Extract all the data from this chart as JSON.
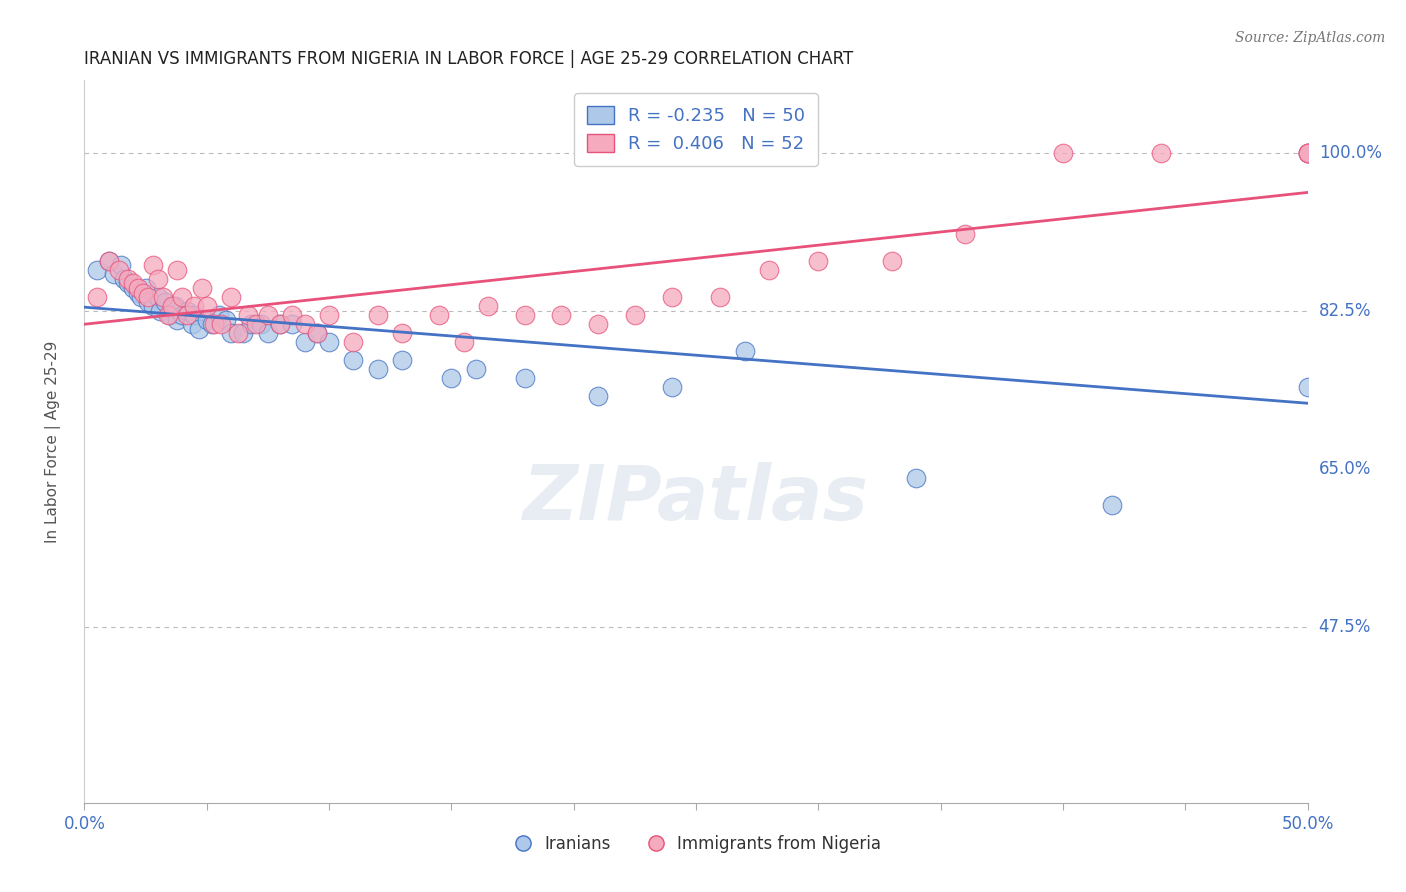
{
  "title": "IRANIAN VS IMMIGRANTS FROM NIGERIA IN LABOR FORCE | AGE 25-29 CORRELATION CHART",
  "source": "Source: ZipAtlas.com",
  "ylabel": "In Labor Force | Age 25-29",
  "xlim": [
    0.0,
    0.5
  ],
  "ylim": [
    0.28,
    1.08
  ],
  "yticks": [
    0.475,
    0.65,
    0.825,
    1.0
  ],
  "ytick_labels": [
    "47.5%",
    "65.0%",
    "82.5%",
    "100.0%"
  ],
  "hlines": [
    0.475,
    0.825,
    1.0
  ],
  "blue_R": "-0.235",
  "blue_N": "50",
  "pink_R": "0.406",
  "pink_N": "52",
  "blue_color": "#adc8e8",
  "pink_color": "#f5aabe",
  "blue_line_color": "#4472c4",
  "pink_line_color": "#e8527a",
  "legend_label_blue": "Iranians",
  "legend_label_pink": "Immigrants from Nigeria",
  "watermark": "ZIPatlas",
  "blue_points_x": [
    0.005,
    0.01,
    0.012,
    0.015,
    0.016,
    0.018,
    0.02,
    0.022,
    0.023,
    0.025,
    0.026,
    0.028,
    0.03,
    0.031,
    0.033,
    0.035,
    0.037,
    0.038,
    0.04,
    0.042,
    0.044,
    0.045,
    0.047,
    0.05,
    0.052,
    0.055,
    0.058,
    0.06,
    0.065,
    0.068,
    0.072,
    0.075,
    0.08,
    0.085,
    0.09,
    0.095,
    0.1,
    0.11,
    0.12,
    0.13,
    0.15,
    0.16,
    0.18,
    0.21,
    0.24,
    0.27,
    0.34,
    0.42,
    0.5,
    0.5
  ],
  "blue_points_y": [
    0.87,
    0.88,
    0.865,
    0.875,
    0.86,
    0.855,
    0.85,
    0.845,
    0.84,
    0.85,
    0.835,
    0.83,
    0.84,
    0.825,
    0.835,
    0.82,
    0.83,
    0.815,
    0.82,
    0.825,
    0.81,
    0.82,
    0.805,
    0.815,
    0.81,
    0.82,
    0.815,
    0.8,
    0.8,
    0.81,
    0.81,
    0.8,
    0.81,
    0.81,
    0.79,
    0.8,
    0.79,
    0.77,
    0.76,
    0.77,
    0.75,
    0.76,
    0.75,
    0.73,
    0.74,
    0.78,
    0.64,
    0.61,
    1.0,
    0.74
  ],
  "pink_points_x": [
    0.005,
    0.01,
    0.014,
    0.018,
    0.02,
    0.022,
    0.024,
    0.026,
    0.028,
    0.03,
    0.032,
    0.034,
    0.036,
    0.038,
    0.04,
    0.042,
    0.045,
    0.048,
    0.05,
    0.053,
    0.056,
    0.06,
    0.063,
    0.067,
    0.07,
    0.075,
    0.08,
    0.085,
    0.09,
    0.095,
    0.1,
    0.11,
    0.12,
    0.13,
    0.145,
    0.155,
    0.165,
    0.18,
    0.195,
    0.21,
    0.225,
    0.24,
    0.26,
    0.28,
    0.3,
    0.33,
    0.36,
    0.4,
    0.44,
    0.5,
    0.5,
    0.5
  ],
  "pink_points_y": [
    0.84,
    0.88,
    0.87,
    0.86,
    0.855,
    0.85,
    0.845,
    0.84,
    0.875,
    0.86,
    0.84,
    0.82,
    0.83,
    0.87,
    0.84,
    0.82,
    0.83,
    0.85,
    0.83,
    0.81,
    0.81,
    0.84,
    0.8,
    0.82,
    0.81,
    0.82,
    0.81,
    0.82,
    0.81,
    0.8,
    0.82,
    0.79,
    0.82,
    0.8,
    0.82,
    0.79,
    0.83,
    0.82,
    0.82,
    0.81,
    0.82,
    0.84,
    0.84,
    0.87,
    0.88,
    0.88,
    0.91,
    1.0,
    1.0,
    1.0,
    1.0,
    1.0
  ]
}
